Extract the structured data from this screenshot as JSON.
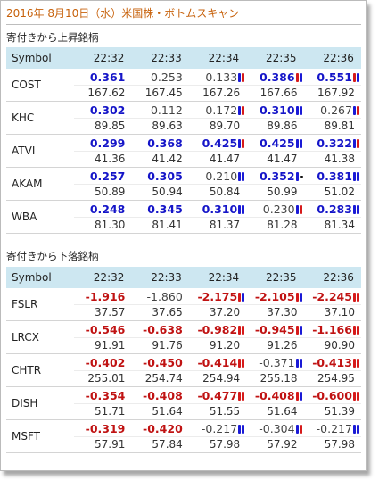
{
  "title": "2016年 8月10日（水）米国株・ボトムスキャン",
  "colors": {
    "title": "#c7620c",
    "header_bg": "#cde7f1",
    "strong_up": "#1515c8",
    "strong_down": "#c01212",
    "candle_blue": "#1a1ad6",
    "candle_red": "#d61a1a"
  },
  "gainers": {
    "section_title": "寄付きから上昇銘柄",
    "header": {
      "symbol": "Symbol",
      "times": [
        "22:32",
        "22:33",
        "22:34",
        "22:35",
        "22:36"
      ]
    },
    "rows": [
      {
        "symbol": "COST",
        "cells": [
          {
            "change": "0.361",
            "price": "167.62",
            "style": "blue",
            "candle": ""
          },
          {
            "change": "0.253",
            "price": "167.45",
            "style": "gray",
            "candle": ""
          },
          {
            "change": "0.133",
            "price": "167.26",
            "style": "gray",
            "candle": "blue-red"
          },
          {
            "change": "0.386",
            "price": "167.66",
            "style": "blue",
            "candle": "red-blue"
          },
          {
            "change": "0.551",
            "price": "167.92",
            "style": "blue",
            "candle": "red-blue"
          }
        ]
      },
      {
        "symbol": "KHC",
        "cells": [
          {
            "change": "0.302",
            "price": "89.85",
            "style": "blue",
            "candle": ""
          },
          {
            "change": "0.112",
            "price": "89.63",
            "style": "gray",
            "candle": ""
          },
          {
            "change": "0.172",
            "price": "89.70",
            "style": "gray",
            "candle": "blue-red"
          },
          {
            "change": "0.310",
            "price": "89.86",
            "style": "blue",
            "candle": "blue-blue"
          },
          {
            "change": "0.267",
            "price": "89.81",
            "style": "gray",
            "candle": "blue-red"
          }
        ]
      },
      {
        "symbol": "ATVI",
        "cells": [
          {
            "change": "0.299",
            "price": "41.36",
            "style": "blue",
            "candle": ""
          },
          {
            "change": "0.368",
            "price": "41.42",
            "style": "blue",
            "candle": ""
          },
          {
            "change": "0.425",
            "price": "41.47",
            "style": "blue",
            "candle": "blue-red"
          },
          {
            "change": "0.425",
            "price": "41.47",
            "style": "blue",
            "candle": "blue-blue"
          },
          {
            "change": "0.322",
            "price": "41.38",
            "style": "blue",
            "candle": "blue-red"
          }
        ]
      },
      {
        "symbol": "AKAM",
        "cells": [
          {
            "change": "0.257",
            "price": "50.89",
            "style": "blue",
            "candle": ""
          },
          {
            "change": "0.305",
            "price": "50.94",
            "style": "blue",
            "candle": ""
          },
          {
            "change": "0.210",
            "price": "50.84",
            "style": "gray",
            "candle": "blue-blue"
          },
          {
            "change": "0.352",
            "price": "50.99",
            "style": "blue",
            "candle": "blue-dash"
          },
          {
            "change": "0.381",
            "price": "51.02",
            "style": "blue",
            "candle": "blue-blue"
          }
        ]
      },
      {
        "symbol": "WBA",
        "cells": [
          {
            "change": "0.248",
            "price": "81.30",
            "style": "blue",
            "candle": ""
          },
          {
            "change": "0.345",
            "price": "81.41",
            "style": "blue",
            "candle": ""
          },
          {
            "change": "0.310",
            "price": "81.37",
            "style": "blue",
            "candle": "blue-blue"
          },
          {
            "change": "0.230",
            "price": "81.28",
            "style": "gray",
            "candle": "blue-red"
          },
          {
            "change": "0.283",
            "price": "81.34",
            "style": "blue",
            "candle": "blue-blue"
          }
        ]
      }
    ]
  },
  "losers": {
    "section_title": "寄付きから下落銘柄",
    "header": {
      "symbol": "Symbol",
      "times": [
        "22:32",
        "22:33",
        "22:34",
        "22:35",
        "22:36"
      ]
    },
    "rows": [
      {
        "symbol": "FSLR",
        "cells": [
          {
            "change": "-1.916",
            "price": "37.57",
            "style": "red",
            "candle": ""
          },
          {
            "change": "-1.860",
            "price": "37.65",
            "style": "gray",
            "candle": ""
          },
          {
            "change": "-2.175",
            "price": "37.20",
            "style": "red",
            "candle": "red-blue"
          },
          {
            "change": "-2.105",
            "price": "37.30",
            "style": "red",
            "candle": "red-blue"
          },
          {
            "change": "-2.245",
            "price": "37.10",
            "style": "red",
            "candle": "red-red"
          }
        ]
      },
      {
        "symbol": "LRCX",
        "cells": [
          {
            "change": "-0.546",
            "price": "91.91",
            "style": "red",
            "candle": ""
          },
          {
            "change": "-0.638",
            "price": "91.76",
            "style": "red",
            "candle": ""
          },
          {
            "change": "-0.982",
            "price": "91.20",
            "style": "red",
            "candle": "red-red"
          },
          {
            "change": "-0.945",
            "price": "91.26",
            "style": "red",
            "candle": "red-blue"
          },
          {
            "change": "-1.166",
            "price": "90.90",
            "style": "red",
            "candle": "red-red"
          }
        ]
      },
      {
        "symbol": "CHTR",
        "cells": [
          {
            "change": "-0.402",
            "price": "255.01",
            "style": "red",
            "candle": ""
          },
          {
            "change": "-0.450",
            "price": "254.74",
            "style": "red",
            "candle": ""
          },
          {
            "change": "-0.414",
            "price": "254.94",
            "style": "red",
            "candle": "red-red"
          },
          {
            "change": "-0.371",
            "price": "255.18",
            "style": "gray",
            "candle": "blue-blue"
          },
          {
            "change": "-0.413",
            "price": "254.95",
            "style": "red",
            "candle": "red-red"
          }
        ]
      },
      {
        "symbol": "DISH",
        "cells": [
          {
            "change": "-0.354",
            "price": "51.71",
            "style": "red",
            "candle": ""
          },
          {
            "change": "-0.408",
            "price": "51.64",
            "style": "red",
            "candle": ""
          },
          {
            "change": "-0.477",
            "price": "51.55",
            "style": "red",
            "candle": "red-red"
          },
          {
            "change": "-0.408",
            "price": "51.64",
            "style": "red",
            "candle": "red-blue"
          },
          {
            "change": "-0.600",
            "price": "51.39",
            "style": "red",
            "candle": "red-red"
          }
        ]
      },
      {
        "symbol": "MSFT",
        "cells": [
          {
            "change": "-0.319",
            "price": "57.91",
            "style": "red",
            "candle": ""
          },
          {
            "change": "-0.420",
            "price": "57.84",
            "style": "red",
            "candle": ""
          },
          {
            "change": "-0.217",
            "price": "57.98",
            "style": "gray",
            "candle": "blue-blue"
          },
          {
            "change": "-0.304",
            "price": "57.92",
            "style": "gray",
            "candle": "blue-red"
          },
          {
            "change": "-0.217",
            "price": "57.98",
            "style": "gray",
            "candle": "blue-blue"
          }
        ]
      }
    ]
  }
}
